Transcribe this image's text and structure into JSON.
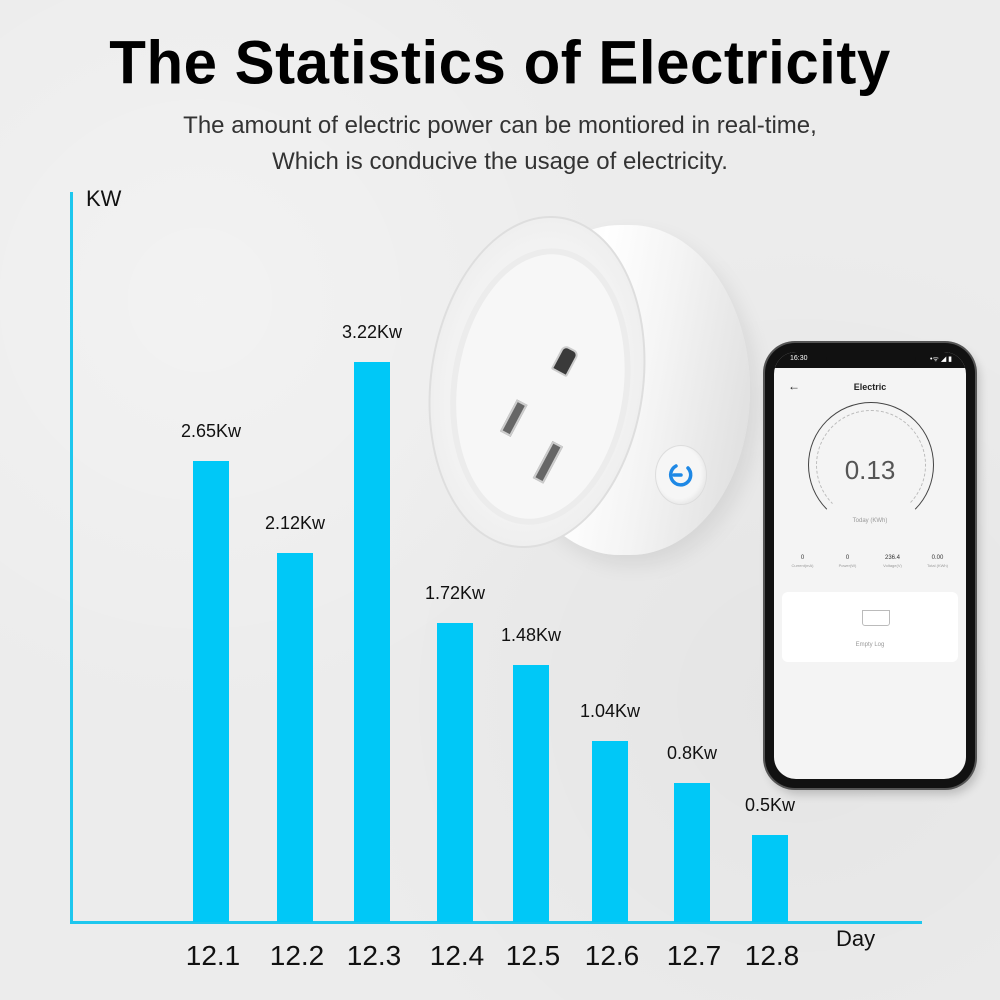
{
  "header": {
    "title": "The Statistics of Electricity",
    "subtitle_line1": "The amount of electric power can be montiored in real-time,",
    "subtitle_line2": "Which is conducive the usage of electricity."
  },
  "chart_data": {
    "type": "bar",
    "title": "The Statistics of Electricity",
    "xlabel": "Day",
    "ylabel": "KW",
    "categories": [
      "12.1",
      "12.2",
      "12.3",
      "12.4",
      "12.5",
      "12.6",
      "12.7",
      "12.8"
    ],
    "values": [
      2.65,
      2.12,
      3.22,
      1.72,
      1.48,
      1.04,
      0.8,
      0.5
    ],
    "data_labels": [
      "2.65Kw",
      "2.12Kw",
      "3.22Kw",
      "1.72Kw",
      "1.48Kw",
      "1.04Kw",
      "0.8Kw",
      "0.5Kw"
    ],
    "bar_color": "#00c8f7",
    "axis_color": "#1ec7ee",
    "grid": false,
    "legend": null
  },
  "phone": {
    "status_time": "16:30",
    "status_icons": "•ᯤ ◢ ▮",
    "screen_title": "Electric",
    "back_icon": "←",
    "gauge_value": "0.13",
    "gauge_caption": "Today (KWh)",
    "stats": [
      {
        "value": "0",
        "label": "Current(mA)"
      },
      {
        "value": "0",
        "label": "Power(W)"
      },
      {
        "value": "236.4",
        "label": "Voltage(V)"
      },
      {
        "value": "0.00",
        "label": "Total (KWh)"
      }
    ],
    "log_text": "Empty Log"
  }
}
